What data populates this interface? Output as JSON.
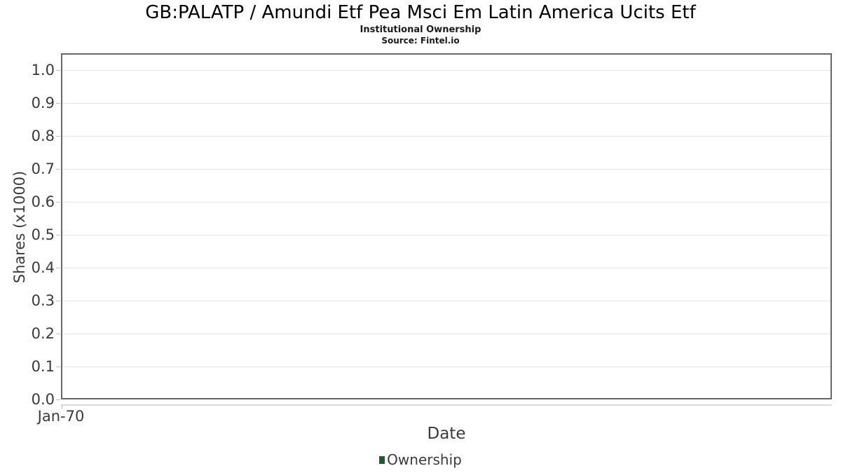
{
  "header": {
    "title": "GB:PALATP / Amundi Etf Pea Msci Em Latin America Ucits Etf",
    "subtitle": "Institutional Ownership",
    "source": "Source: Fintel.io"
  },
  "chart_data": {
    "type": "line",
    "title": "GB:PALATP / Amundi Etf Pea Msci Em Latin America Ucits Etf",
    "subtitle": "Institutional Ownership",
    "source": "Source: Fintel.io",
    "xlabel": "Date",
    "ylabel": "Shares (x1000)",
    "ylim": [
      0.0,
      1.05
    ],
    "yticks": [
      "0.0",
      "0.1",
      "0.2",
      "0.3",
      "0.4",
      "0.5",
      "0.6",
      "0.7",
      "0.8",
      "0.9",
      "1.0"
    ],
    "xticks": [
      "Jan-70"
    ],
    "grid": true,
    "legend": {
      "position": "bottom",
      "entries": [
        {
          "label": "Ownership",
          "color": "#1d5b32"
        }
      ]
    },
    "series": [
      {
        "name": "Ownership",
        "x": [],
        "values": []
      }
    ]
  },
  "colors": {
    "background": "#ffffff",
    "plot_border": "#66686a",
    "gridline": "#e6e6e6",
    "tick_mark": "#c4c4c4",
    "x_axis_line": "#dcdcdc",
    "title_text": "#000000",
    "axis_text": "#3a3a3a",
    "legend_marker": "#1d5b32"
  }
}
